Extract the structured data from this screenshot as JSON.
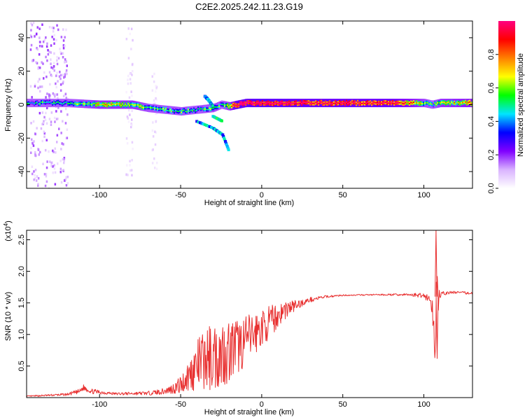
{
  "title": "C2E2.2025.242.11.23.G19",
  "chart_data": [
    {
      "type": "heatmap",
      "xlabel": "Height of straight line (km)",
      "ylabel": "Frequency (Hz)",
      "xlim": [
        -145,
        130
      ],
      "ylim": [
        -50,
        50
      ],
      "x_ticks": [
        -100,
        -50,
        0,
        50,
        100
      ],
      "x_tick_labels": [
        "-100",
        "-50",
        "0",
        "50",
        "100"
      ],
      "y_ticks": [
        -40,
        -20,
        0,
        20,
        40
      ],
      "y_tick_labels": [
        "-40",
        "-20",
        "0",
        "20",
        "40"
      ],
      "colorbar": {
        "label": "Normalized spectral amplitude",
        "range": [
          0,
          1
        ],
        "ticks": [
          0.0,
          0.2,
          0.4,
          0.6,
          0.8
        ],
        "tick_labels": [
          "0.0",
          "0.2",
          "0.4",
          "0.6",
          "0.8"
        ],
        "colors": [
          "#ffffff",
          "#d9b3ff",
          "#8000ff",
          "#0000ff",
          "#00e5ff",
          "#00ff00",
          "#ffff00",
          "#ff8000",
          "#ff0000",
          "#ff0080"
        ]
      },
      "ridge": {
        "x": [
          -145,
          -120,
          -100,
          -80,
          -70,
          -60,
          -50,
          -40,
          -30,
          -25,
          -20,
          -15,
          -10,
          0,
          20,
          50,
          80,
          95,
          100,
          105,
          110,
          130
        ],
        "freq": [
          1,
          1,
          0,
          0,
          -2,
          -3,
          -4,
          -3,
          -2,
          0,
          -1,
          0,
          1,
          1,
          1,
          1,
          1,
          1,
          1,
          0,
          1,
          1
        ],
        "amplitude": [
          0.3,
          0.3,
          0.5,
          0.5,
          0.35,
          0.35,
          0.35,
          0.3,
          0.4,
          0.3,
          0.5,
          0.9,
          0.9,
          0.9,
          0.85,
          0.8,
          0.8,
          0.55,
          0.4,
          0.3,
          0.5,
          0.6
        ]
      },
      "branches": [
        {
          "x": [
            -40,
            -30,
            -24,
            -20
          ],
          "freq": [
            -10,
            -14,
            -18,
            -28
          ],
          "amplitude": 0.3
        },
        {
          "x": [
            -30,
            -24
          ],
          "freq": [
            -7,
            -10
          ],
          "amplitude": 0.4
        },
        {
          "x": [
            -35,
            -33,
            -30
          ],
          "freq": [
            5,
            3,
            -1
          ],
          "amplitude": 0.3
        }
      ],
      "scatter_regions": [
        {
          "x": [
            -143,
            -120
          ],
          "freq": [
            -50,
            50
          ],
          "amplitude": 0.15
        },
        {
          "x": [
            -84,
            -80
          ],
          "freq": [
            -45,
            50
          ],
          "amplitude": 0.08
        },
        {
          "x": [
            -68,
            -65
          ],
          "freq": [
            -40,
            20
          ],
          "amplitude": 0.06
        }
      ]
    },
    {
      "type": "line",
      "xlabel": "Height of straight line (km)",
      "ylabel": "SNR (10 * v/v)",
      "y_multiplier": "(x10",
      "y_multiplier_exp": "4",
      "y_multiplier_close": ")",
      "xlim": [
        -145,
        130
      ],
      "ylim": [
        0,
        2.65
      ],
      "x_ticks": [
        -100,
        -50,
        0,
        50,
        100
      ],
      "x_tick_labels": [
        "-100",
        "-50",
        "0",
        "50",
        "100"
      ],
      "y_ticks": [
        0.5,
        1.0,
        1.5,
        2.0,
        2.5
      ],
      "y_tick_labels": [
        "0.5",
        "1.0",
        "1.5",
        "2.0",
        "2.5"
      ],
      "color": "#e83030",
      "envelope": {
        "x": [
          -145,
          -120,
          -112,
          -110,
          -105,
          -90,
          -70,
          -60,
          -55,
          -50,
          -45,
          -40,
          -35,
          -30,
          -25,
          -20,
          -15,
          -10,
          -5,
          0,
          5,
          10,
          15,
          20,
          25,
          30,
          40,
          50,
          70,
          90,
          100,
          104,
          106,
          107,
          108,
          109,
          110,
          112,
          120,
          130
        ],
        "mean": [
          0.02,
          0.05,
          0.1,
          0.16,
          0.1,
          0.06,
          0.07,
          0.1,
          0.14,
          0.2,
          0.35,
          0.5,
          0.6,
          0.65,
          0.7,
          0.75,
          0.8,
          0.9,
          1.0,
          1.1,
          1.2,
          1.3,
          1.4,
          1.45,
          1.5,
          1.55,
          1.6,
          1.62,
          1.63,
          1.63,
          1.62,
          1.55,
          1.2,
          0.7,
          1.9,
          1.7,
          1.6,
          1.65,
          1.67,
          1.65
        ],
        "spread": [
          0.01,
          0.02,
          0.04,
          0.05,
          0.04,
          0.02,
          0.03,
          0.05,
          0.08,
          0.15,
          0.25,
          0.4,
          0.5,
          0.55,
          0.55,
          0.5,
          0.45,
          0.4,
          0.35,
          0.3,
          0.25,
          0.2,
          0.15,
          0.1,
          0.05,
          0.04,
          0.02,
          0.01,
          0.01,
          0.02,
          0.04,
          0.1,
          0.3,
          0.2,
          0.7,
          0.3,
          0.06,
          0.03,
          0.02,
          0.02
        ]
      },
      "spikes": [
        {
          "x": 107.5,
          "y": 2.65
        },
        {
          "x": 108.2,
          "y": 0.62
        }
      ]
    }
  ]
}
